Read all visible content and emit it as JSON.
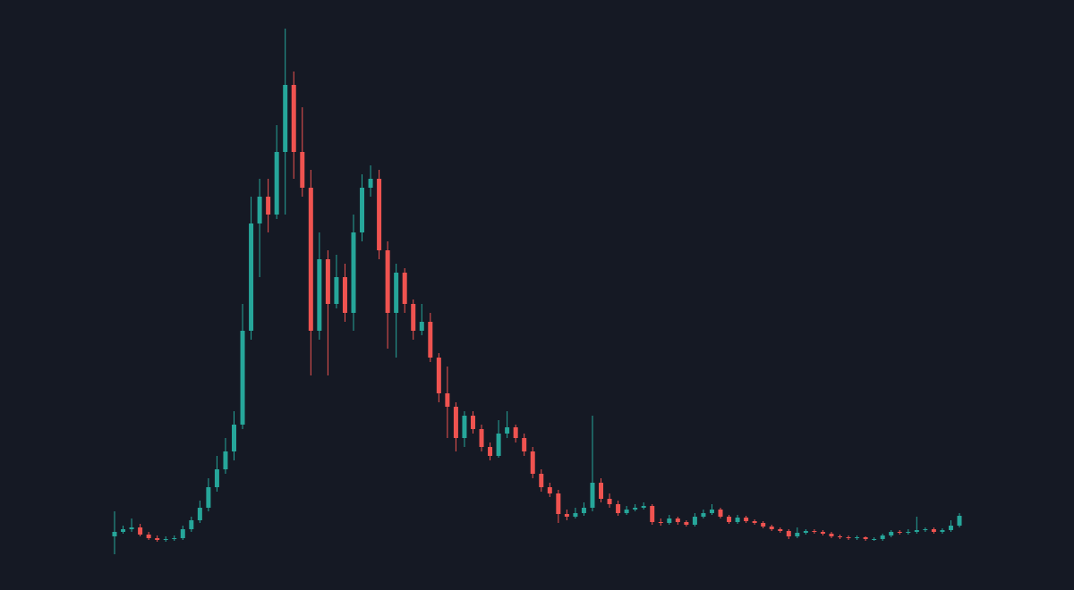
{
  "chart_data": {
    "type": "candlestick",
    "up_color": "#26a69a",
    "down_color": "#ef5350",
    "ylim": [
      0,
      640
    ],
    "open": [
      40,
      45,
      48,
      50,
      42,
      38,
      36,
      37,
      38,
      48,
      58,
      72,
      95,
      115,
      135,
      165,
      270,
      390,
      420,
      400,
      470,
      545,
      470,
      430,
      270,
      350,
      300,
      330,
      290,
      380,
      430,
      440,
      360,
      290,
      335,
      300,
      270,
      280,
      240,
      200,
      185,
      150,
      175,
      160,
      140,
      130,
      155,
      162,
      150,
      135,
      110,
      95,
      88,
      65,
      62,
      66,
      72,
      100,
      82,
      76,
      66,
      70,
      72,
      74,
      56,
      55,
      60,
      56,
      53,
      62,
      66,
      70,
      62,
      56,
      61,
      57,
      55,
      51,
      48,
      46,
      40,
      44,
      46,
      45,
      43,
      40,
      39,
      38,
      39,
      37,
      37,
      41,
      45,
      44,
      45,
      47,
      48,
      45,
      47,
      52
    ],
    "high": [
      68,
      52,
      60,
      54,
      45,
      41,
      40,
      41,
      52,
      62,
      80,
      105,
      130,
      150,
      180,
      300,
      420,
      440,
      440,
      500,
      608,
      560,
      520,
      450,
      380,
      360,
      355,
      345,
      400,
      445,
      455,
      450,
      370,
      345,
      340,
      305,
      300,
      290,
      245,
      230,
      190,
      180,
      180,
      165,
      145,
      170,
      180,
      165,
      155,
      140,
      115,
      100,
      92,
      70,
      72,
      78,
      175,
      105,
      88,
      80,
      74,
      76,
      78,
      76,
      60,
      64,
      62,
      58,
      66,
      70,
      76,
      72,
      64,
      64,
      63,
      59,
      57,
      53,
      50,
      48,
      50,
      48,
      48,
      47,
      45,
      42,
      41,
      41,
      40,
      39,
      43,
      47,
      47,
      48,
      62,
      50,
      50,
      49,
      58,
      66
    ],
    "low": [
      20,
      43,
      45,
      40,
      36,
      34,
      34,
      35,
      36,
      45,
      55,
      68,
      90,
      110,
      125,
      160,
      260,
      330,
      380,
      395,
      400,
      440,
      420,
      220,
      260,
      220,
      295,
      280,
      270,
      370,
      420,
      350,
      250,
      240,
      290,
      260,
      265,
      235,
      190,
      150,
      135,
      140,
      155,
      135,
      125,
      128,
      150,
      145,
      130,
      105,
      90,
      84,
      55,
      58,
      60,
      63,
      68,
      78,
      72,
      63,
      64,
      68,
      70,
      53,
      52,
      53,
      53,
      51,
      51,
      60,
      64,
      60,
      54,
      54,
      55,
      53,
      49,
      46,
      44,
      37,
      38,
      42,
      43,
      41,
      38,
      37,
      36,
      36,
      35,
      35,
      35,
      39,
      42,
      42,
      43,
      45,
      43,
      43,
      45,
      50
    ],
    "close": [
      45,
      48,
      50,
      42,
      38,
      36,
      37,
      38,
      48,
      58,
      72,
      95,
      115,
      135,
      165,
      270,
      390,
      420,
      400,
      470,
      545,
      470,
      430,
      270,
      350,
      300,
      330,
      290,
      380,
      430,
      440,
      360,
      290,
      335,
      300,
      270,
      280,
      240,
      200,
      185,
      150,
      175,
      160,
      140,
      130,
      155,
      162,
      150,
      135,
      110,
      95,
      88,
      65,
      62,
      66,
      72,
      100,
      82,
      76,
      66,
      70,
      72,
      74,
      56,
      55,
      60,
      56,
      53,
      62,
      66,
      70,
      62,
      56,
      61,
      57,
      55,
      51,
      48,
      46,
      40,
      44,
      46,
      45,
      43,
      40,
      39,
      38,
      39,
      37,
      37,
      41,
      45,
      44,
      45,
      47,
      48,
      45,
      47,
      52,
      63
    ]
  }
}
